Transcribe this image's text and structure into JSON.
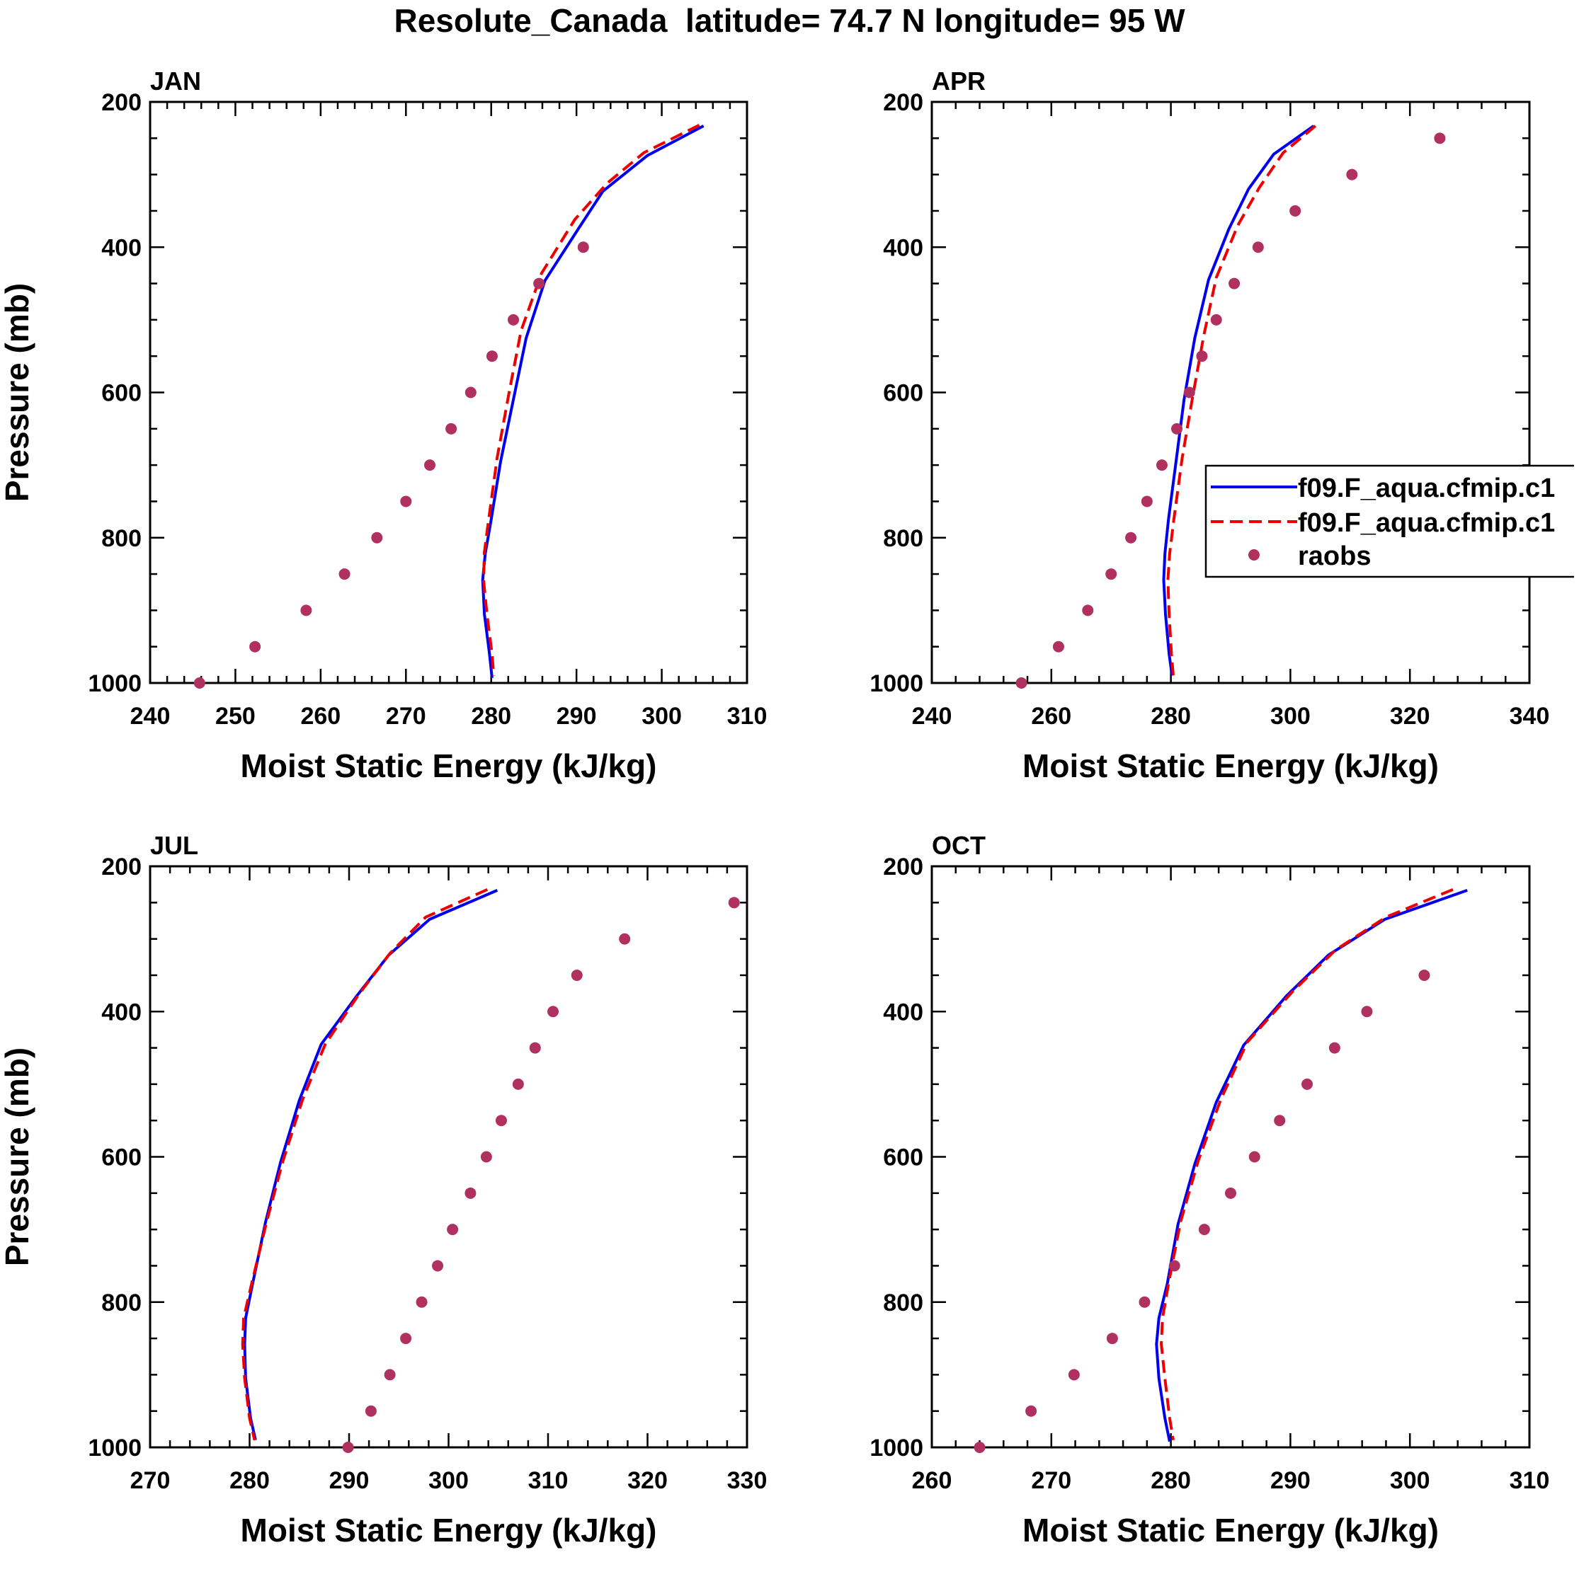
{
  "figure_title": "Resolute_Canada  latitude= 74.7 N longitude= 95 W",
  "legend": {
    "model_1": "f09.F_aqua.cfmip.c1",
    "model_2": "f09.F_aqua.cfmip.c1",
    "obs": "raobs"
  },
  "colors": {
    "model_1": "#0000ee",
    "model_2": "#ee0000",
    "obs": "#b03060",
    "axes": "#000000"
  },
  "chart_data": [
    {
      "type": "line",
      "title": "JAN",
      "xlabel": "Moist Static Energy (kJ/kg)",
      "ylabel": "Pressure (mb)",
      "xlim": [
        240,
        310
      ],
      "xticks": [
        240,
        250,
        260,
        270,
        280,
        290,
        300,
        310
      ],
      "ylim": [
        200,
        1000
      ],
      "yticks": [
        200,
        400,
        600,
        800,
        1000
      ],
      "y_inverted": true,
      "show_legend": false,
      "series": [
        {
          "name": "f09.F_aqua.cfmip.c1",
          "style": "solid",
          "color": "blue",
          "x": [
            304.9,
            298.3,
            293.1,
            290.1,
            286.3,
            284.1,
            282.6,
            281.1,
            280.0,
            279.3,
            279.0,
            279.2,
            279.8,
            280.1
          ],
          "y": [
            233,
            274,
            323,
            377,
            446,
            525,
            610,
            695,
            775,
            822,
            858,
            905,
            960,
            993
          ]
        },
        {
          "name": "f09.F_aqua.cfmip.c1",
          "style": "dashed",
          "color": "red",
          "x": [
            304.4,
            297.9,
            293.6,
            289.8,
            285.9,
            283.5,
            282.1,
            280.7,
            279.7,
            279.2,
            279.1,
            279.5,
            280.1,
            280.3
          ],
          "y": [
            232,
            270,
            312,
            362,
            436,
            515,
            600,
            690,
            775,
            820,
            858,
            905,
            960,
            990
          ]
        },
        {
          "name": "raobs",
          "style": "markers",
          "color": "maroon",
          "x": [
            290.8,
            285.6,
            282.6,
            280.1,
            277.6,
            275.3,
            272.8,
            270.0,
            266.6,
            262.8,
            258.3,
            252.3,
            245.8
          ],
          "y": [
            400,
            450,
            500,
            550,
            600,
            650,
            700,
            750,
            800,
            850,
            900,
            950,
            1000
          ]
        }
      ]
    },
    {
      "type": "line",
      "title": "APR",
      "xlabel": "Moist Static Energy (kJ/kg)",
      "ylabel": "",
      "xlim": [
        240,
        340
      ],
      "xticks": [
        240,
        260,
        280,
        300,
        320,
        340
      ],
      "ylim": [
        200,
        1000
      ],
      "yticks": [
        200,
        400,
        600,
        800,
        1000
      ],
      "y_inverted": true,
      "show_legend": true,
      "legend_location": "right",
      "series": [
        {
          "name": "f09.F_aqua.cfmip.c1",
          "style": "solid",
          "color": "blue",
          "x": [
            303.9,
            297.2,
            293.0,
            289.7,
            286.3,
            284.0,
            282.2,
            280.9,
            279.6,
            279.0,
            278.8,
            279.1,
            279.7,
            280.2
          ],
          "y": [
            233,
            272,
            320,
            375,
            445,
            525,
            610,
            693,
            775,
            822,
            858,
            905,
            960,
            990
          ]
        },
        {
          "name": "f09.F_aqua.cfmip.c1",
          "style": "dashed",
          "color": "red",
          "x": [
            304.2,
            298.8,
            294.8,
            291.2,
            287.6,
            285.5,
            283.6,
            281.9,
            280.5,
            279.8,
            279.5,
            279.7,
            280.1,
            280.4
          ],
          "y": [
            233,
            270,
            318,
            370,
            442,
            522,
            608,
            690,
            775,
            822,
            858,
            905,
            960,
            990
          ]
        },
        {
          "name": "raobs",
          "style": "markers",
          "color": "maroon",
          "x": [
            325.0,
            310.3,
            300.8,
            294.6,
            290.6,
            287.6,
            285.2,
            283.1,
            281.0,
            278.5,
            276.0,
            273.3,
            270.0,
            266.1,
            261.2,
            255.0
          ],
          "y": [
            250,
            300,
            350,
            400,
            450,
            500,
            550,
            600,
            650,
            700,
            750,
            800,
            850,
            900,
            950,
            1000
          ]
        }
      ]
    },
    {
      "type": "line",
      "title": "JUL",
      "xlabel": "Moist Static Energy (kJ/kg)",
      "ylabel": "Pressure (mb)",
      "xlim": [
        270,
        330
      ],
      "xticks": [
        270,
        280,
        290,
        300,
        310,
        320,
        330
      ],
      "ylim": [
        200,
        1000
      ],
      "yticks": [
        200,
        400,
        600,
        800,
        1000
      ],
      "y_inverted": true,
      "show_legend": false,
      "series": [
        {
          "name": "f09.F_aqua.cfmip.c1",
          "style": "solid",
          "color": "blue",
          "x": [
            304.9,
            298.1,
            294.0,
            290.8,
            287.2,
            285.0,
            283.1,
            281.6,
            280.3,
            279.6,
            279.5,
            279.6,
            280.1,
            280.6
          ],
          "y": [
            233,
            273,
            322,
            378,
            445,
            522,
            608,
            690,
            775,
            822,
            858,
            905,
            960,
            990
          ]
        },
        {
          "name": "f09.F_aqua.cfmip.c1",
          "style": "dashed",
          "color": "red",
          "x": [
            303.9,
            297.7,
            294.1,
            291.0,
            287.6,
            285.3,
            283.3,
            281.7,
            280.2,
            279.4,
            279.3,
            279.5,
            280.0,
            280.5
          ],
          "y": [
            232,
            270,
            320,
            376,
            445,
            522,
            608,
            690,
            775,
            822,
            858,
            905,
            960,
            990
          ]
        },
        {
          "name": "raobs",
          "style": "markers",
          "color": "maroon",
          "x": [
            328.7,
            317.7,
            312.9,
            310.5,
            308.7,
            307.0,
            305.3,
            303.8,
            302.2,
            300.4,
            298.9,
            297.3,
            295.7,
            294.1,
            292.2,
            289.9
          ],
          "y": [
            250,
            300,
            350,
            400,
            450,
            500,
            550,
            600,
            650,
            700,
            750,
            800,
            850,
            900,
            950,
            1000
          ]
        }
      ]
    },
    {
      "type": "line",
      "title": "OCT",
      "xlabel": "Moist Static Energy (kJ/kg)",
      "ylabel": "",
      "xlim": [
        260,
        310
      ],
      "xticks": [
        260,
        270,
        280,
        290,
        300,
        310
      ],
      "ylim": [
        200,
        1000
      ],
      "yticks": [
        200,
        400,
        600,
        800,
        1000
      ],
      "y_inverted": true,
      "show_legend": false,
      "series": [
        {
          "name": "f09.F_aqua.cfmip.c1",
          "style": "solid",
          "color": "blue",
          "x": [
            304.8,
            297.9,
            293.2,
            289.7,
            286.1,
            283.8,
            282.0,
            280.6,
            279.7,
            279.0,
            278.8,
            279.0,
            279.5,
            279.9
          ],
          "y": [
            233,
            273,
            322,
            378,
            446,
            525,
            610,
            693,
            775,
            822,
            858,
            905,
            960,
            992
          ]
        },
        {
          "name": "f09.F_aqua.cfmip.c1",
          "style": "dashed",
          "color": "red",
          "x": [
            303.6,
            298.0,
            293.8,
            290.2,
            286.4,
            284.2,
            282.3,
            280.8,
            279.8,
            279.3,
            279.2,
            279.5,
            279.9,
            280.2
          ],
          "y": [
            232,
            270,
            315,
            372,
            442,
            520,
            605,
            690,
            775,
            822,
            858,
            905,
            960,
            990
          ]
        },
        {
          "name": "raobs",
          "style": "markers",
          "color": "maroon",
          "x": [
            301.2,
            296.4,
            293.7,
            291.4,
            289.1,
            287.0,
            285.0,
            282.8,
            280.3,
            277.8,
            275.1,
            271.9,
            268.3,
            264.0
          ],
          "y": [
            350,
            400,
            450,
            500,
            550,
            600,
            650,
            700,
            750,
            800,
            850,
            900,
            950,
            1000
          ]
        }
      ]
    }
  ]
}
